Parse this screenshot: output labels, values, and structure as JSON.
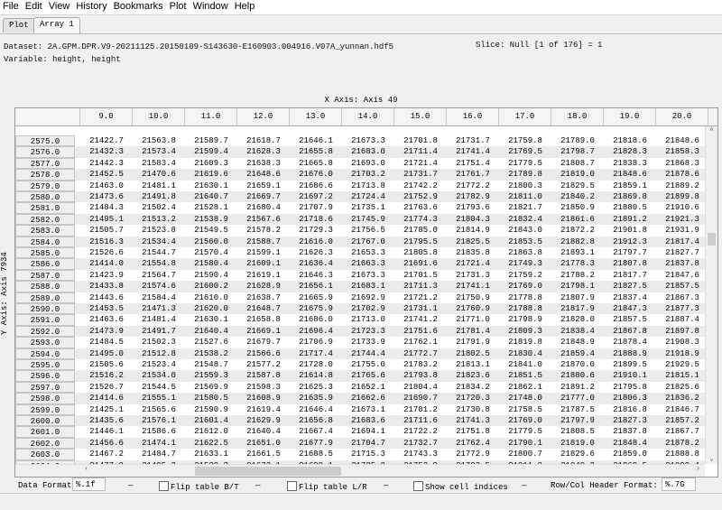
{
  "menu": [
    "File",
    "Edit",
    "View",
    "History",
    "Bookmarks",
    "Plot",
    "Window",
    "Help"
  ],
  "tabs": [
    {
      "label": "Plot",
      "active": false
    },
    {
      "label": "Array 1",
      "active": true
    }
  ],
  "info": {
    "dataset": "Dataset: 2A.GPM.DPR.V9-20211125.20150109-S143630-E160903.004916.V07A_yunnan.hdf5",
    "variable": "Variable: height, height",
    "slice": "Slice: Null [1 of 176] = 1"
  },
  "x_axis_label": "X Axis: Axis 49",
  "y_axis_label": "Y Axis: Axis 7934",
  "table": {
    "columns": [
      "9.0",
      "10.0",
      "11.0",
      "12.0",
      "13.0",
      "14.0",
      "15.0",
      "16.0",
      "17.0",
      "18.0",
      "19.0",
      "20.0"
    ],
    "rows": [
      {
        "h": "2575.0",
        "v": [
          "21422.7",
          "21563.8",
          "21589.7",
          "21618.7",
          "21646.1",
          "21673.3",
          "21701.8",
          "21731.7",
          "21759.8",
          "21789.0",
          "21818.6",
          "21848.6"
        ]
      },
      {
        "h": "2576.0",
        "v": [
          "21432.3",
          "21573.4",
          "21599.4",
          "21628.3",
          "21655.8",
          "21683.0",
          "21711.4",
          "21741.4",
          "21769.5",
          "21798.7",
          "21828.3",
          "21858.3"
        ]
      },
      {
        "h": "2577.0",
        "v": [
          "21442.3",
          "21583.4",
          "21609.3",
          "21638.3",
          "21665.8",
          "21693.0",
          "21721.4",
          "21751.4",
          "21779.5",
          "21808.7",
          "21838.3",
          "21868.3"
        ]
      },
      {
        "h": "2578.0",
        "v": [
          "21452.5",
          "21470.6",
          "21619.6",
          "21648.6",
          "21676.0",
          "21703.2",
          "21731.7",
          "21761.7",
          "21789.8",
          "21819.0",
          "21848.6",
          "21878.6"
        ]
      },
      {
        "h": "2579.0",
        "v": [
          "21463.0",
          "21481.1",
          "21630.1",
          "21659.1",
          "21686.6",
          "21713.8",
          "21742.2",
          "21772.2",
          "21800.3",
          "21829.5",
          "21859.1",
          "21889.2"
        ]
      },
      {
        "h": "2580.0",
        "v": [
          "21473.6",
          "21491.8",
          "21640.7",
          "21669.7",
          "21697.2",
          "21724.4",
          "21752.9",
          "21782.9",
          "21811.0",
          "21840.2",
          "21869.8",
          "21899.8"
        ]
      },
      {
        "h": "2581.0",
        "v": [
          "21484.3",
          "21502.4",
          "21528.1",
          "21680.4",
          "21707.9",
          "21735.1",
          "21763.6",
          "21793.6",
          "21821.7",
          "21850.9",
          "21880.5",
          "21910.6"
        ]
      },
      {
        "h": "2582.0",
        "v": [
          "21495.1",
          "21513.2",
          "21538.9",
          "21567.6",
          "21718.6",
          "21745.9",
          "21774.3",
          "21804.3",
          "21832.4",
          "21861.6",
          "21891.2",
          "21921.3"
        ]
      },
      {
        "h": "2583.0",
        "v": [
          "21505.7",
          "21523.8",
          "21549.5",
          "21578.2",
          "21729.3",
          "21756.5",
          "21785.0",
          "21814.9",
          "21843.0",
          "21872.2",
          "21901.8",
          "21931.9"
        ]
      },
      {
        "h": "2584.0",
        "v": [
          "21516.3",
          "21534.4",
          "21560.0",
          "21588.7",
          "21616.0",
          "21767.0",
          "21795.5",
          "21825.5",
          "21853.5",
          "21882.8",
          "21912.3",
          "21817.4"
        ]
      },
      {
        "h": "2585.0",
        "v": [
          "21526.6",
          "21544.7",
          "21570.4",
          "21599.1",
          "21626.3",
          "21653.3",
          "21805.8",
          "21835.8",
          "21863.8",
          "21893.1",
          "21797.7",
          "21827.7"
        ]
      },
      {
        "h": "2586.0",
        "v": [
          "21414.0",
          "21554.8",
          "21580.4",
          "21609.1",
          "21636.4",
          "21663.3",
          "21691.6",
          "21721.4",
          "21749.3",
          "21778.3",
          "21807.8",
          "21837.8"
        ]
      },
      {
        "h": "2587.0",
        "v": [
          "21423.9",
          "21564.7",
          "21590.4",
          "21619.1",
          "21646.3",
          "21673.3",
          "21701.5",
          "21731.3",
          "21759.2",
          "21788.2",
          "21817.7",
          "21847.6"
        ]
      },
      {
        "h": "2588.0",
        "v": [
          "21433.8",
          "21574.6",
          "21600.2",
          "21628.9",
          "21656.1",
          "21683.1",
          "21711.3",
          "21741.1",
          "21769.0",
          "21798.1",
          "21827.5",
          "21857.5"
        ]
      },
      {
        "h": "2589.0",
        "v": [
          "21443.6",
          "21584.4",
          "21610.0",
          "21638.7",
          "21665.9",
          "21692.9",
          "21721.2",
          "21750.9",
          "21778.8",
          "21807.9",
          "21837.4",
          "21867.3"
        ]
      },
      {
        "h": "2590.0",
        "v": [
          "21453.5",
          "21471.3",
          "21620.0",
          "21648.7",
          "21675.9",
          "21702.9",
          "21731.1",
          "21760.9",
          "21788.8",
          "21817.9",
          "21847.3",
          "21877.3"
        ]
      },
      {
        "h": "2591.0",
        "v": [
          "21463.6",
          "21481.4",
          "21630.1",
          "21658.8",
          "21686.0",
          "21713.0",
          "21741.2",
          "21771.0",
          "21798.9",
          "21828.0",
          "21857.5",
          "21887.4"
        ]
      },
      {
        "h": "2592.0",
        "v": [
          "21473.9",
          "21491.7",
          "21640.4",
          "21669.1",
          "21696.4",
          "21723.3",
          "21751.6",
          "21781.4",
          "21809.3",
          "21838.4",
          "21867.8",
          "21897.8"
        ]
      },
      {
        "h": "2593.0",
        "v": [
          "21484.5",
          "21502.3",
          "21527.6",
          "21679.7",
          "21706.9",
          "21733.9",
          "21762.1",
          "21791.9",
          "21819.8",
          "21848.9",
          "21878.4",
          "21908.3"
        ]
      },
      {
        "h": "2594.0",
        "v": [
          "21495.0",
          "21512.8",
          "21538.2",
          "21566.6",
          "21717.4",
          "21744.4",
          "21772.7",
          "21802.5",
          "21830.4",
          "21859.4",
          "21888.9",
          "21918.9"
        ]
      },
      {
        "h": "2595.0",
        "v": [
          "21505.6",
          "21523.4",
          "21548.7",
          "21577.2",
          "21728.0",
          "21755.0",
          "21783.2",
          "21813.1",
          "21841.0",
          "21870.0",
          "21899.5",
          "21929.5"
        ]
      },
      {
        "h": "2596.0",
        "v": [
          "21516.2",
          "21534.0",
          "21559.3",
          "21587.8",
          "21614.8",
          "21765.6",
          "21793.8",
          "21823.6",
          "21851.5",
          "21880.6",
          "21910.1",
          "21815.1"
        ]
      },
      {
        "h": "2597.0",
        "v": [
          "21526.7",
          "21544.5",
          "21569.9",
          "21598.3",
          "21625.3",
          "21652.1",
          "21804.4",
          "21834.2",
          "21862.1",
          "21891.2",
          "21795.8",
          "21825.6"
        ]
      },
      {
        "h": "2598.0",
        "v": [
          "21414.6",
          "21555.1",
          "21580.5",
          "21608.9",
          "21635.9",
          "21662.6",
          "21690.7",
          "21720.3",
          "21748.0",
          "21777.0",
          "21806.3",
          "21836.2"
        ]
      },
      {
        "h": "2599.0",
        "v": [
          "21425.1",
          "21565.6",
          "21590.9",
          "21619.4",
          "21646.4",
          "21673.1",
          "21701.2",
          "21730.8",
          "21758.5",
          "21787.5",
          "21816.8",
          "21846.7"
        ]
      },
      {
        "h": "2600.0",
        "v": [
          "21435.6",
          "21576.1",
          "21601.4",
          "21629.9",
          "21656.8",
          "21683.6",
          "21711.6",
          "21741.3",
          "21769.0",
          "21797.9",
          "21827.3",
          "21857.2"
        ]
      },
      {
        "h": "2601.0",
        "v": [
          "21446.1",
          "21586.6",
          "21612.0",
          "21640.4",
          "21667.4",
          "21694.1",
          "21722.2",
          "21751.8",
          "21779.5",
          "21808.5",
          "21837.8",
          "21867.7"
        ]
      },
      {
        "h": "2602.0",
        "v": [
          "21456.6",
          "21474.1",
          "21622.5",
          "21651.0",
          "21677.9",
          "21704.7",
          "21732.7",
          "21762.4",
          "21790.1",
          "21819.0",
          "21848.4",
          "21878.2"
        ]
      },
      {
        "h": "2603.0",
        "v": [
          "21467.2",
          "21484.7",
          "21633.1",
          "21661.5",
          "21688.5",
          "21715.3",
          "21743.3",
          "21772.9",
          "21800.7",
          "21829.6",
          "21859.0",
          "21888.8"
        ]
      },
      {
        "h": "2604.0",
        "v": [
          "21477.8",
          "21495.3",
          "21520.3",
          "21672.1",
          "21699.1",
          "21725.8",
          "21753.9",
          "21783.5",
          "21811.2",
          "21840.2",
          "21869.5",
          "21899.4"
        ]
      }
    ]
  },
  "controls": {
    "data_format_label": "Data Format:",
    "data_format_value": "%.1f",
    "flip_bt_label": "Flip table B/T",
    "flip_bt_checked": false,
    "flip_lr_label": "Flip table L/R",
    "flip_lr_checked": false,
    "show_indices_label": "Show cell indices",
    "show_indices_checked": false,
    "separator": "—",
    "header_format_label": "Row/Col Header Format:",
    "header_format_value": "%.7G"
  }
}
